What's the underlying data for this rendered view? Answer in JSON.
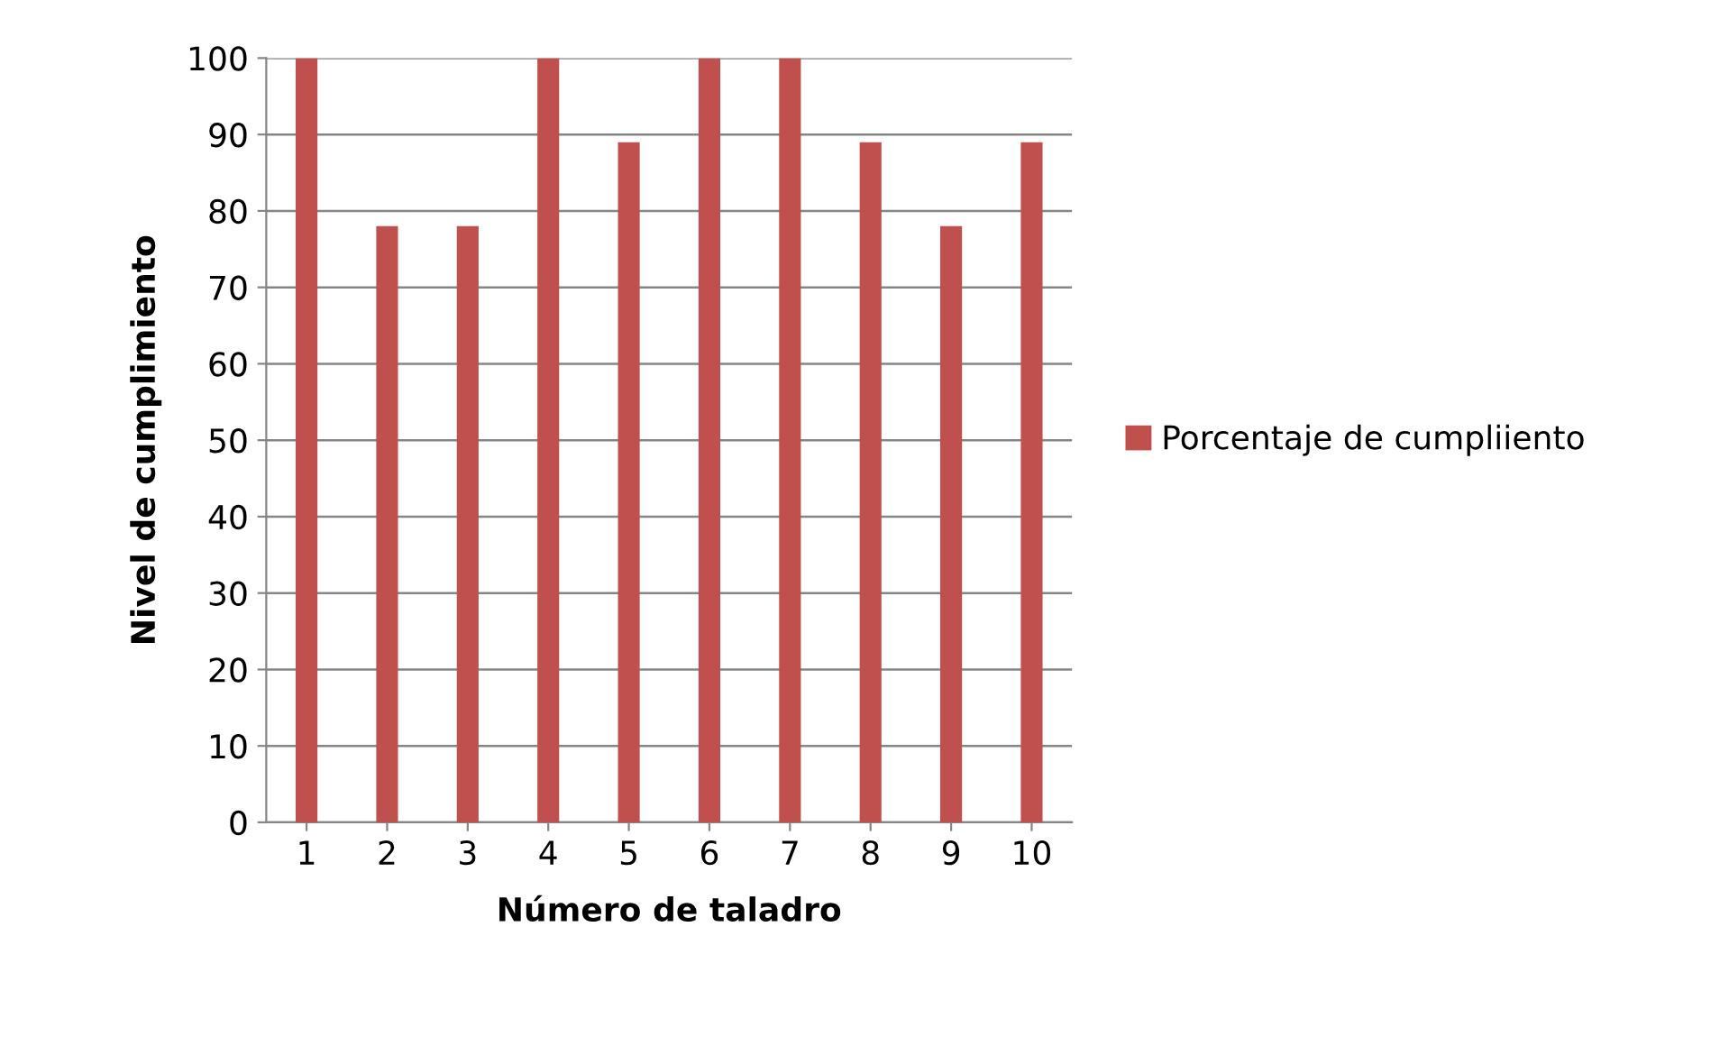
{
  "chart_data": {
    "type": "bar",
    "xlabel": "Número de taladro",
    "ylabel": "Nivel de cumplimiento",
    "categories": [
      "1",
      "2",
      "3",
      "4",
      "5",
      "6",
      "7",
      "8",
      "9",
      "10"
    ],
    "series": [
      {
        "name": "Porcentaje de cumpliiento",
        "color": "#c0504d",
        "values": [
          100,
          78,
          78,
          100,
          89,
          100,
          100,
          89,
          78,
          89
        ]
      }
    ],
    "ylim": [
      0,
      100
    ],
    "yticks": [
      0,
      10,
      20,
      30,
      40,
      50,
      60,
      70,
      80,
      90,
      100
    ],
    "grid": "y",
    "legend": "right"
  }
}
